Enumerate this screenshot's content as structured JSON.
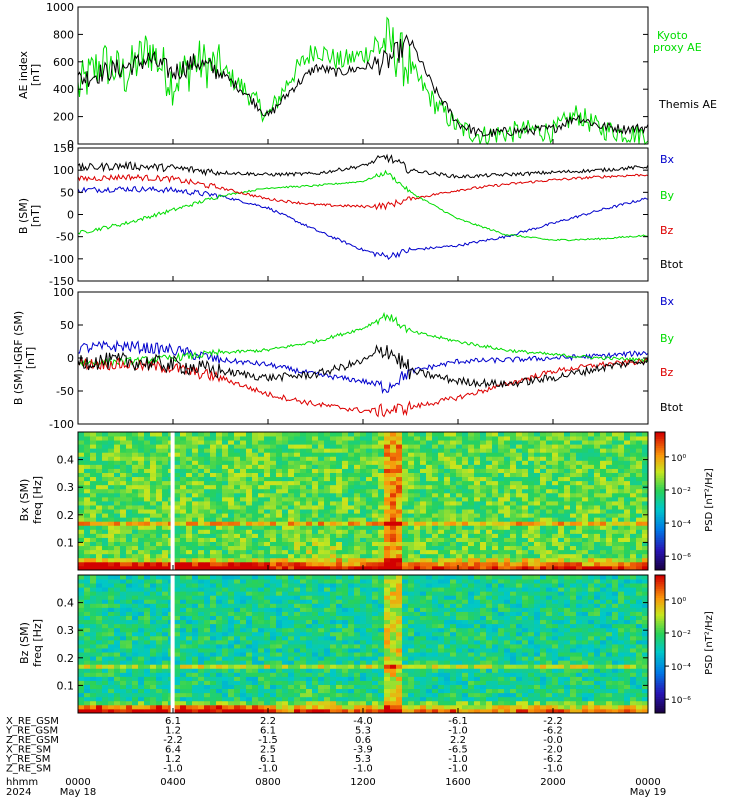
{
  "colors": {
    "kyoto": "#00dd00",
    "themis": "#000000",
    "bx": "#0000cc",
    "by": "#00dd00",
    "bz": "#dd0000",
    "btot": "#000000"
  },
  "panels": {
    "ae": {
      "ylabel1": "AE index",
      "ylabel2": "[nT]",
      "ticks": [
        "0",
        "200",
        "400",
        "600",
        "800",
        "1000"
      ],
      "legend": [
        "Kyoto",
        "proxy AE",
        "Themis AE"
      ]
    },
    "bsm": {
      "ylabel1": "B (SM)",
      "ylabel2": "[nT]",
      "ticks": [
        "-150",
        "-100",
        "-50",
        "0",
        "50",
        "100",
        "150"
      ],
      "legend": [
        "Bx",
        "By",
        "Bz",
        "Btot"
      ]
    },
    "bdiff": {
      "ylabel1": "B (SM)-IGRF (SM)",
      "ylabel2": "[nT]",
      "ticks": [
        "-100",
        "-50",
        "0",
        "50",
        "100"
      ],
      "legend": [
        "Bx",
        "By",
        "Bz",
        "Btot"
      ]
    },
    "bxspec": {
      "ylabel1": "Bx (SM)",
      "ylabel2": "freq [Hz]",
      "ticks": [
        "0.1",
        "0.2",
        "0.3",
        "0.4"
      ],
      "cbar_label": "PSD [nT²/Hz]",
      "cbar_ticks": [
        "10⁰",
        "10⁻²",
        "10⁻⁴",
        "10⁻⁶"
      ]
    },
    "bzspec": {
      "ylabel1": "Bz (SM)",
      "ylabel2": "freq [Hz]",
      "ticks": [
        "0.1",
        "0.2",
        "0.3",
        "0.4"
      ],
      "cbar_label": "PSD [nT²/Hz]",
      "cbar_ticks": [
        "10⁰",
        "10⁻²",
        "10⁻⁴",
        "10⁻⁶"
      ]
    }
  },
  "footer": {
    "rows": [
      {
        "label": "X_RE_GSM",
        "values": [
          "6.1",
          "2.2",
          "-4.0",
          "-6.1",
          "-2.2"
        ]
      },
      {
        "label": "Y_RE_GSM",
        "values": [
          "1.2",
          "6.1",
          "5.3",
          "-1.0",
          "-6.2"
        ]
      },
      {
        "label": "Z_RE_GSM",
        "values": [
          "-2.2",
          "-1.5",
          "0.6",
          "2.2",
          "-0.0"
        ]
      },
      {
        "label": "X_RE_SM",
        "values": [
          "6.4",
          "2.5",
          "-3.9",
          "-6.5",
          "-2.0"
        ]
      },
      {
        "label": "Y_RE_SM",
        "values": [
          "1.2",
          "6.1",
          "5.3",
          "-1.0",
          "-6.2"
        ]
      },
      {
        "label": "Z_RE_SM",
        "values": [
          "-1.0",
          "-1.0",
          "-1.0",
          "-1.0",
          "-1.0"
        ]
      }
    ],
    "hhmm_label": "hhmm",
    "year_label": "2024",
    "time_ticks": [
      "0000",
      "0400",
      "0800",
      "1200",
      "1600",
      "2000",
      "0000"
    ],
    "date_start": "May 18",
    "date_end": "May 19"
  },
  "chart_data": [
    {
      "type": "line",
      "ylabel": "AE index [nT]",
      "ylim": [
        0,
        1000
      ],
      "x_hours": [
        0,
        1,
        2,
        3,
        4,
        5,
        6,
        7,
        8,
        9,
        10,
        11,
        12,
        13,
        14,
        15,
        16,
        17,
        18,
        19,
        20,
        21,
        22,
        23,
        24
      ],
      "series": [
        {
          "name": "Kyoto proxy AE",
          "values": [
            400,
            600,
            500,
            700,
            450,
            600,
            550,
            400,
            200,
            500,
            700,
            600,
            650,
            750,
            550,
            300,
            120,
            60,
            80,
            100,
            90,
            220,
            110,
            80,
            70
          ]
        },
        {
          "name": "Themis AE",
          "values": [
            470,
            520,
            560,
            620,
            520,
            600,
            520,
            380,
            200,
            400,
            560,
            520,
            560,
            600,
            750,
            400,
            150,
            70,
            90,
            100,
            110,
            200,
            130,
            110,
            120
          ]
        }
      ]
    },
    {
      "type": "line",
      "ylabel": "B (SM) [nT]",
      "ylim": [
        -150,
        150
      ],
      "x_hours": [
        0,
        2,
        4,
        6,
        8,
        10,
        12,
        13,
        14,
        16,
        18,
        20,
        22,
        24
      ],
      "series": [
        {
          "name": "Bx",
          "values": [
            55,
            58,
            55,
            42,
            15,
            -35,
            -80,
            -95,
            -80,
            -70,
            -50,
            -20,
            10,
            37
          ]
        },
        {
          "name": "By",
          "values": [
            -42,
            -20,
            10,
            42,
            60,
            65,
            75,
            95,
            50,
            -10,
            -45,
            -58,
            -55,
            -47
          ]
        },
        {
          "name": "Bz",
          "values": [
            80,
            85,
            80,
            60,
            35,
            22,
            18,
            20,
            35,
            55,
            68,
            78,
            85,
            90
          ]
        },
        {
          "name": "Btot",
          "values": [
            105,
            110,
            105,
            95,
            90,
            92,
            110,
            130,
            100,
            85,
            90,
            95,
            100,
            108
          ]
        }
      ]
    },
    {
      "type": "line",
      "ylabel": "B (SM)-IGRF (SM) [nT]",
      "ylim": [
        -100,
        100
      ],
      "x_hours": [
        0,
        2,
        4,
        6,
        8,
        10,
        12,
        13,
        14,
        16,
        18,
        20,
        22,
        24
      ],
      "series": [
        {
          "name": "Bx",
          "values": [
            15,
            18,
            12,
            -3,
            -10,
            -25,
            -35,
            -45,
            -20,
            -5,
            -3,
            0,
            3,
            8
          ]
        },
        {
          "name": "By",
          "values": [
            -8,
            -5,
            0,
            8,
            12,
            25,
            45,
            65,
            40,
            25,
            12,
            5,
            0,
            -3
          ]
        },
        {
          "name": "Bz",
          "values": [
            -8,
            -10,
            -15,
            -30,
            -55,
            -70,
            -80,
            -80,
            -75,
            -60,
            -40,
            -20,
            -10,
            -5
          ]
        },
        {
          "name": "Btot",
          "values": [
            -5,
            -5,
            -10,
            -20,
            -30,
            -25,
            -5,
            15,
            -20,
            -35,
            -40,
            -30,
            -15,
            -3
          ]
        }
      ]
    },
    {
      "type": "heatmap",
      "ylabel": "Bx (SM) freq [Hz]",
      "ylim": [
        0,
        0.5
      ],
      "colorbar": "PSD [nT²/Hz]"
    },
    {
      "type": "heatmap",
      "ylabel": "Bz (SM) freq [Hz]",
      "ylim": [
        0,
        0.5
      ],
      "colorbar": "PSD [nT²/Hz]"
    }
  ]
}
